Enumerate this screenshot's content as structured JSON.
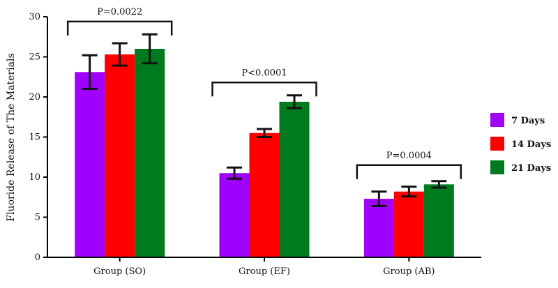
{
  "chart_data": {
    "type": "bar",
    "ylabel": "Fluoride Release of The Materials",
    "ylim": [
      0,
      30
    ],
    "yticks": [
      0,
      5,
      10,
      15,
      20,
      25,
      30
    ],
    "grid": false,
    "legend_position": "right",
    "categories": [
      "Group (SO)",
      "Group (EF)",
      "Group (AB)"
    ],
    "series": [
      {
        "name": "7 Days",
        "color": "#a000ff",
        "values": [
          23.1,
          10.5,
          7.3
        ],
        "errors": [
          2.1,
          0.7,
          0.9
        ]
      },
      {
        "name": "14 Days",
        "color": "#ff0000",
        "values": [
          25.3,
          15.5,
          8.2
        ],
        "errors": [
          1.4,
          0.5,
          0.6
        ]
      },
      {
        "name": "21 Days",
        "color": "#007a1f",
        "values": [
          26.0,
          19.4,
          9.1
        ],
        "errors": [
          1.8,
          0.8,
          0.4
        ]
      }
    ],
    "annotations": [
      {
        "category_index": 0,
        "text": "P=0.0022",
        "y": 29.4
      },
      {
        "category_index": 1,
        "text": "P<0.0001",
        "y": 21.8
      },
      {
        "category_index": 2,
        "text": "P=0.0004",
        "y": 11.5
      }
    ]
  }
}
